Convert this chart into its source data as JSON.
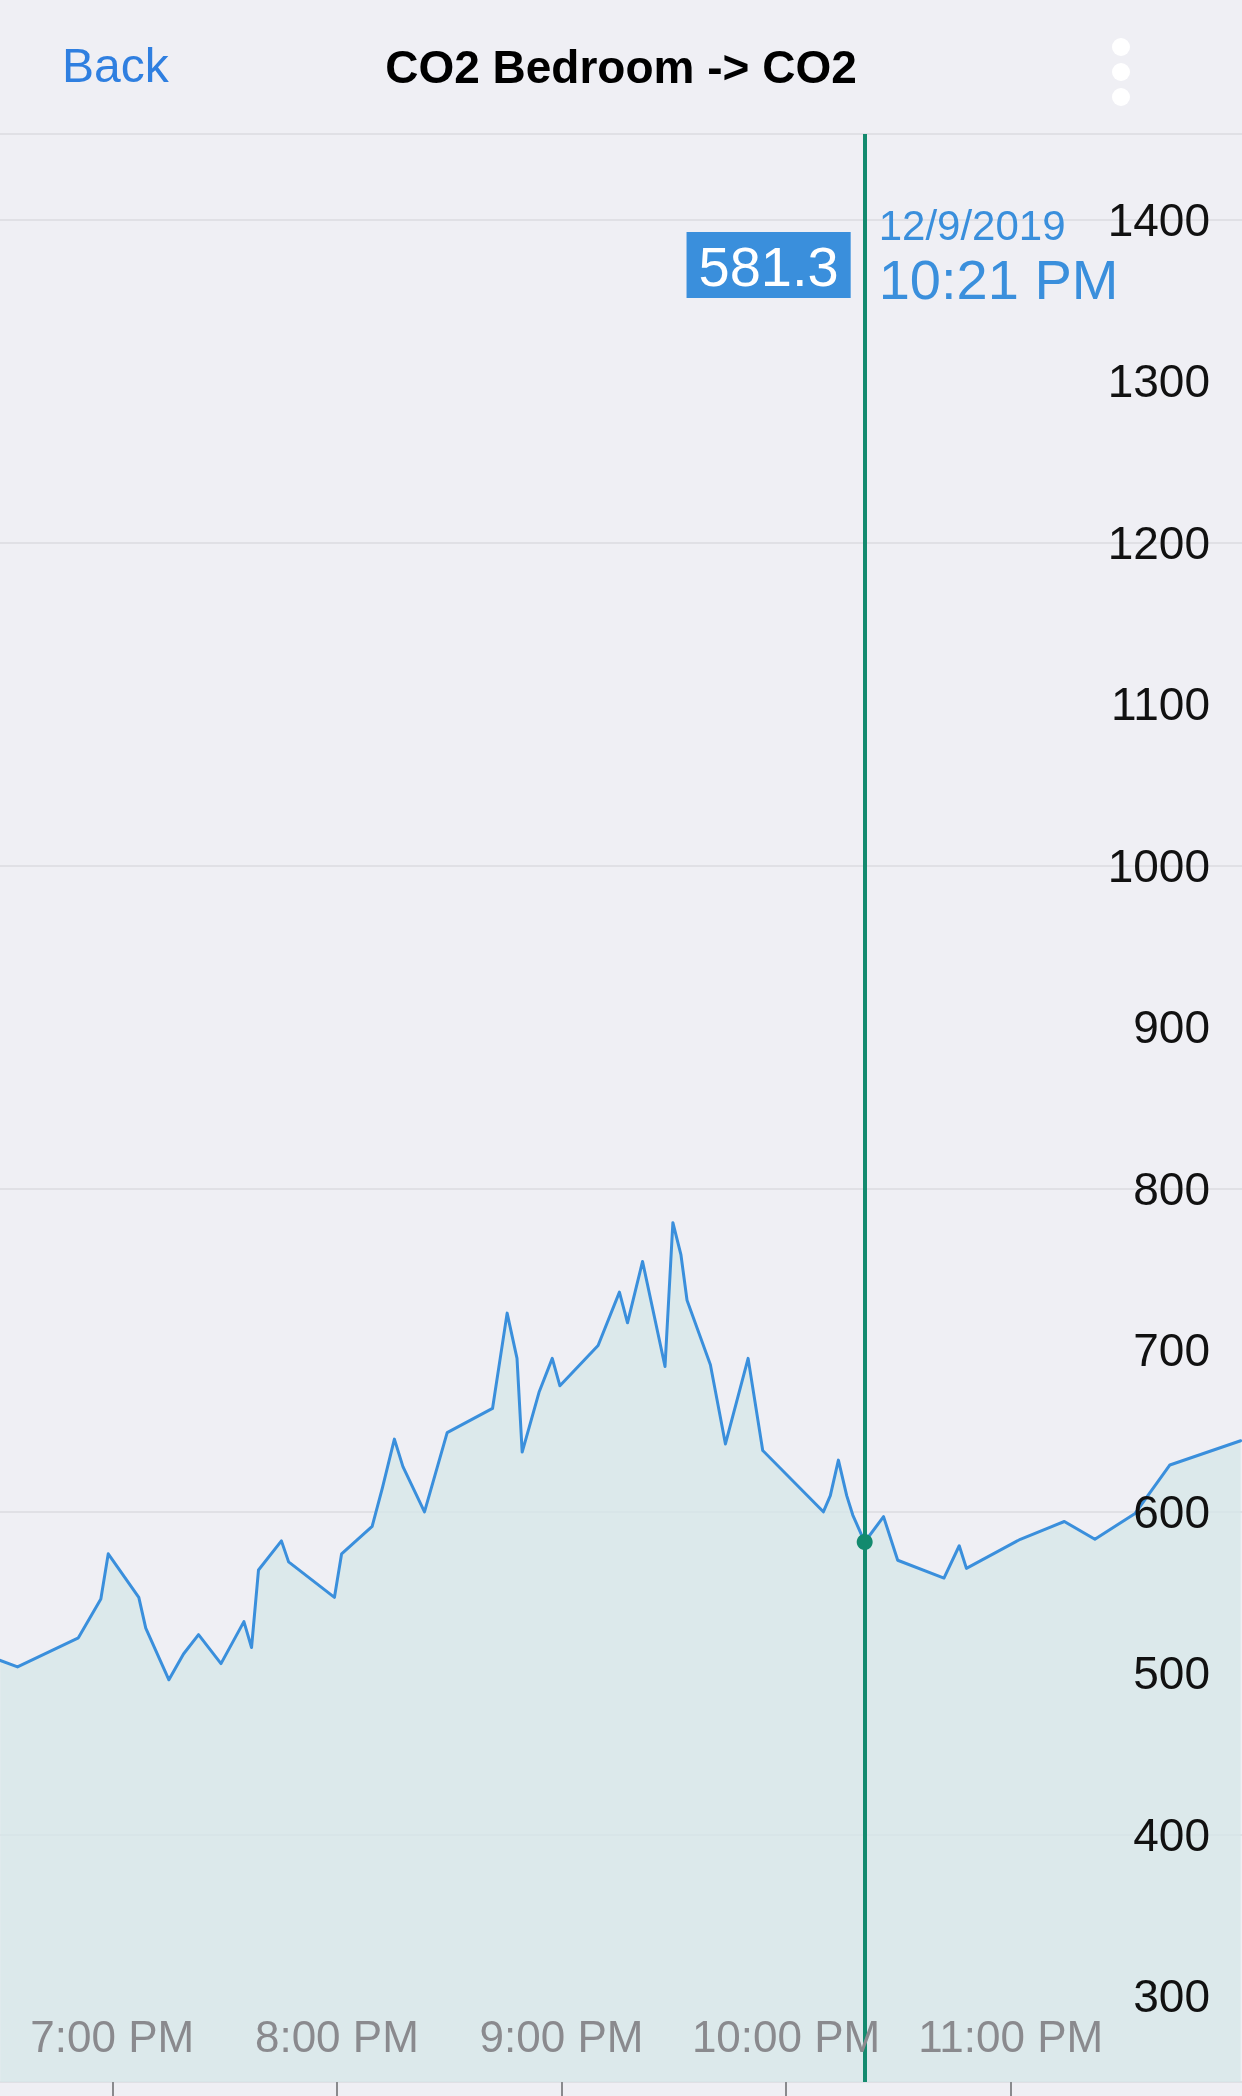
{
  "chart_data": {
    "type": "area",
    "title": "CO2 Bedroom -> CO2",
    "annotations": [
      "Back",
      "12/9/2019",
      "10:21 PM",
      "581.3"
    ],
    "x": [
      18.501,
      18.578,
      18.849,
      18.949,
      18.982,
      19.118,
      19.149,
      19.252,
      19.317,
      19.384,
      19.484,
      19.586,
      19.62,
      19.651,
      19.753,
      19.785,
      19.989,
      20.021,
      20.157,
      20.203,
      20.256,
      20.294,
      20.39,
      20.491,
      20.693,
      20.758,
      20.802,
      20.825,
      20.9,
      20.959,
      20.993,
      21.163,
      21.258,
      21.294,
      21.361,
      21.461,
      21.496,
      21.532,
      21.559,
      21.663,
      21.73,
      21.831,
      21.896,
      22.166,
      22.197,
      22.233,
      22.27,
      22.297,
      22.35,
      22.434,
      22.497,
      22.703,
      22.771,
      22.803,
      23.043,
      23.239,
      23.375,
      23.554,
      23.709,
      24.024
    ],
    "series": [
      {
        "color": "#3a8fdc",
        "values": [
          508,
          504,
          522,
          546,
          574,
          547,
          528,
          496,
          512,
          524,
          506,
          532,
          516,
          564,
          582,
          569,
          547,
          574,
          591,
          615,
          645,
          628,
          600,
          649,
          664,
          723,
          695,
          637,
          674,
          695,
          678,
          703,
          736,
          717,
          755,
          690,
          779,
          759,
          731,
          691,
          642,
          695,
          638,
          600,
          610,
          632,
          610,
          598,
          581.3,
          597,
          570,
          559,
          579,
          565,
          583,
          594,
          583,
          599,
          629,
          644
        ]
      }
    ],
    "xlim": [
      18.5,
      24.03
    ],
    "xticks": [
      {
        "value": 19,
        "label": "7:00 PM"
      },
      {
        "value": 20,
        "label": "8:00 PM"
      },
      {
        "value": 21,
        "label": "9:00 PM"
      },
      {
        "value": 22,
        "label": "10:00 PM"
      },
      {
        "value": 23,
        "label": "11:00 PM"
      }
    ],
    "ylim": [
      247,
      1453
    ],
    "yticks": [
      300,
      400,
      500,
      600,
      700,
      800,
      900,
      1000,
      1100,
      1200,
      1300,
      1400
    ],
    "ref_lines": [
      {
        "axis": "x",
        "value": 22.35,
        "color": "#138a6e"
      }
    ],
    "grid": "y",
    "marker": "none",
    "line_style": "solid"
  }
}
